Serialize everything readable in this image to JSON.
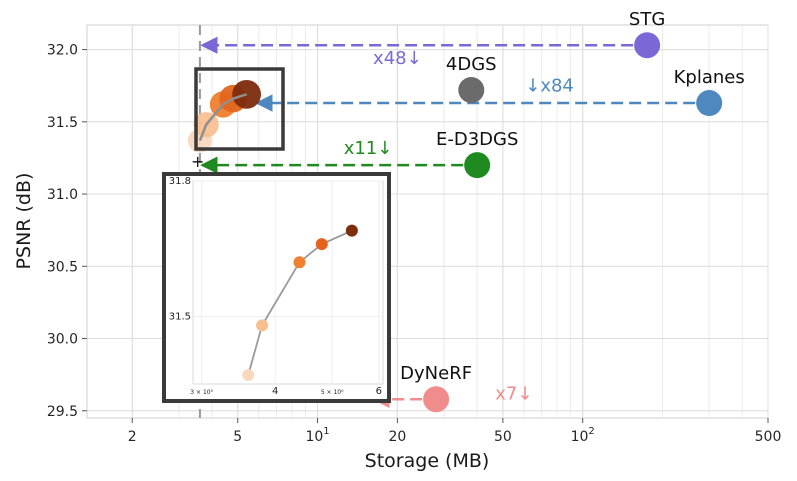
{
  "chart_data": {
    "type": "scatter",
    "title": "",
    "xlabel": "Storage (MB)",
    "ylabel": "PSNR (dB)",
    "xscale": "log",
    "xlim": [
      1.35,
      500
    ],
    "ylim": [
      29.45,
      32.17
    ],
    "grid": true,
    "x_tick_labels": [
      {
        "value": 2,
        "label": "2"
      },
      {
        "value": 5,
        "label": "5"
      },
      {
        "value": 10,
        "label": "10",
        "sup": "1"
      },
      {
        "value": 20,
        "label": "20"
      },
      {
        "value": 50,
        "label": "50"
      },
      {
        "value": 100,
        "label": "10",
        "sup": "2"
      },
      {
        "value": 500,
        "label": "500"
      }
    ],
    "y_ticks": [
      "29.5",
      "30.0",
      "30.5",
      "31.0",
      "31.5",
      "32.0"
    ],
    "methods": [
      {
        "name": "STG",
        "x": 175,
        "y": 32.03,
        "color": "#7b68d6"
      },
      {
        "name": "4DGS",
        "x": 38,
        "y": 31.72,
        "color": "#6b6b6b"
      },
      {
        "name": "Kplanes",
        "x": 300,
        "y": 31.63,
        "color": "#4f88be"
      },
      {
        "name": "E-D3DGS",
        "x": 40,
        "y": 31.2,
        "color": "#1f8a1f"
      },
      {
        "name": "DyNeRF",
        "x": 28,
        "y": 29.58,
        "color": "#f08c8c"
      }
    ],
    "ours": {
      "x": [
        3.6,
        3.8,
        4.4,
        4.8,
        5.4
      ],
      "y": [
        31.37,
        31.48,
        31.62,
        31.66,
        31.69
      ],
      "colors": [
        "#f9d8bd",
        "#f8c090",
        "#f08030",
        "#e3651d",
        "#7d2c0c"
      ]
    },
    "arrows": [
      {
        "label": "x48↓",
        "from_x": 175,
        "to_x": 3.6,
        "y": 32.03,
        "color": "#7b68d6",
        "label_x": 20,
        "label_y": 31.94
      },
      {
        "label": "↓x84",
        "from_x": 300,
        "to_x": 5.8,
        "y": 31.63,
        "color": "#4f88be",
        "label_x": 75,
        "label_y": 31.75
      },
      {
        "label": "x11↓",
        "from_x": 40,
        "to_x": 3.6,
        "y": 31.2,
        "color": "#1f8a1f",
        "label_x": 15.5,
        "label_y": 31.32
      },
      {
        "label": "x7↓",
        "from_x": 28,
        "to_x": 16,
        "y": 29.58,
        "color": "#f08c8c",
        "label_x": 55,
        "label_y": 29.62
      }
    ],
    "inset": {
      "xlim": [
        2.9,
        6.1
      ],
      "ylim": [
        31.35,
        31.8
      ],
      "x_ticks": [
        {
          "value": 3,
          "label": "3 × 10⁰"
        },
        {
          "value": 4,
          "label": "4"
        },
        {
          "value": 5,
          "label": "5 × 10⁰"
        },
        {
          "value": 6,
          "label": "6"
        }
      ],
      "y_ticks": [
        {
          "value": 31.5,
          "label": "31.5"
        },
        {
          "value": 31.8,
          "label": "31.8"
        }
      ],
      "points": [
        {
          "x": 3.6,
          "y": 31.37
        },
        {
          "x": 3.8,
          "y": 31.48
        },
        {
          "x": 4.4,
          "y": 31.62
        },
        {
          "x": 4.8,
          "y": 31.66
        },
        {
          "x": 5.4,
          "y": 31.69
        }
      ]
    }
  }
}
